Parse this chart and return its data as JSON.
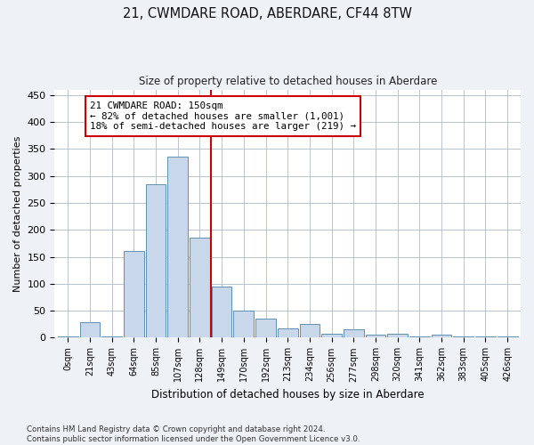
{
  "title": "21, CWMDARE ROAD, ABERDARE, CF44 8TW",
  "subtitle": "Size of property relative to detached houses in Aberdare",
  "xlabel": "Distribution of detached houses by size in Aberdare",
  "ylabel": "Number of detached properties",
  "bar_color": "#c8d8ea",
  "bar_edge_color": "#6090b0",
  "annotation_line_color": "#cc0000",
  "annotation_box_color": "#cc0000",
  "annotation_text": "21 CWMDARE ROAD: 150sqm\n← 82% of detached houses are smaller (1,001)\n18% of semi-detached houses are larger (219) →",
  "categories": [
    "0sqm",
    "21sqm",
    "43sqm",
    "64sqm",
    "85sqm",
    "107sqm",
    "128sqm",
    "149sqm",
    "170sqm",
    "192sqm",
    "213sqm",
    "234sqm",
    "256sqm",
    "277sqm",
    "298sqm",
    "320sqm",
    "341sqm",
    "362sqm",
    "383sqm",
    "405sqm",
    "426sqm"
  ],
  "bar_heights": [
    2,
    28,
    3,
    160,
    285,
    335,
    185,
    95,
    50,
    35,
    18,
    25,
    8,
    15,
    5,
    8,
    3,
    5,
    2,
    2,
    2
  ],
  "ylim": [
    0,
    460
  ],
  "yticks": [
    0,
    50,
    100,
    150,
    200,
    250,
    300,
    350,
    400,
    450
  ],
  "footer": "Contains HM Land Registry data © Crown copyright and database right 2024.\nContains public sector information licensed under the Open Government Licence v3.0.",
  "background_color": "#eef2f7",
  "plot_background_color": "#ffffff",
  "grid_color": "#b0bcc8"
}
